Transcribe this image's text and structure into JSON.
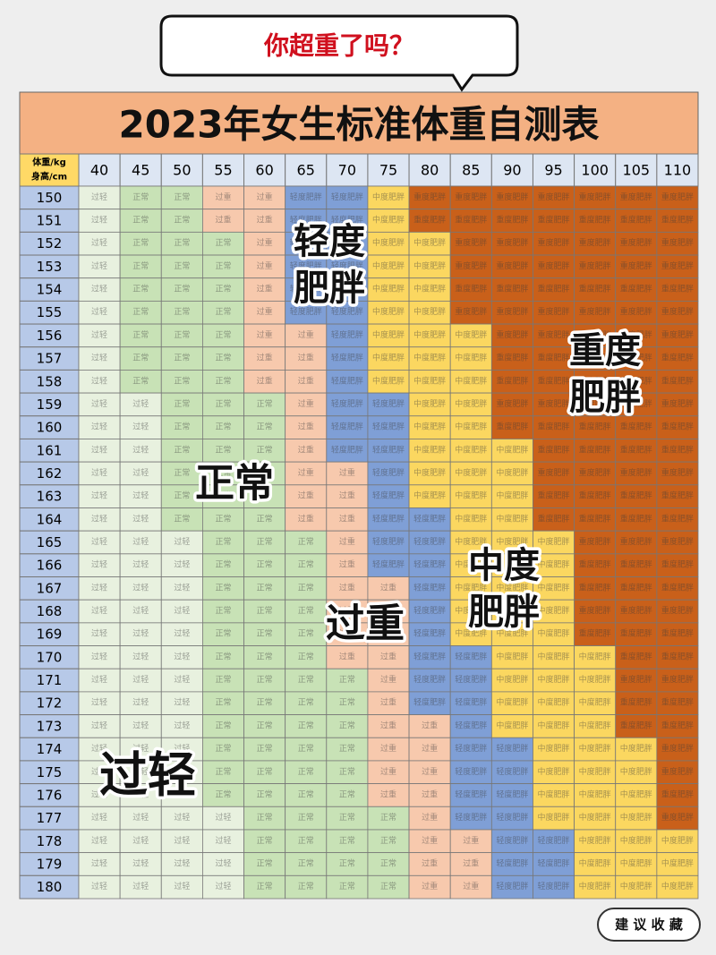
{
  "bubble": "你超重了吗？",
  "title": "2023年女生标准体重自测表",
  "levels": [
    {
      "label": "过轻",
      "color": "#e8f1df"
    },
    {
      "label": "正常",
      "color": "#c8e2b6"
    },
    {
      "label": "过重",
      "color": "#f7c9ad"
    },
    {
      "label": "轻度肥胖",
      "color": "#7f9fd6"
    },
    {
      "label": "中度肥胖",
      "color": "#fbd760"
    },
    {
      "label": "重度肥胖",
      "color": "#c9601a"
    }
  ],
  "table": {
    "corner": [
      "体重/kg",
      "身高/cm"
    ],
    "weights": [
      40,
      45,
      50,
      55,
      60,
      65,
      70,
      75,
      80,
      85,
      90,
      95,
      100,
      105,
      110
    ],
    "rows": [
      {
        "height": 150,
        "cells": [
          "过轻",
          "正常",
          "正常",
          "过重",
          "过重",
          "轻度肥胖",
          "轻度肥胖",
          "中度肥胖",
          "重度肥胖",
          "重度肥胖",
          "重度肥胖",
          "重度肥胖",
          "重度肥胖",
          "重度肥胖",
          "重度肥胖"
        ]
      },
      {
        "height": 151,
        "cells": [
          "过轻",
          "正常",
          "正常",
          "过重",
          "过重",
          "轻度肥胖",
          "轻度肥胖",
          "中度肥胖",
          "重度肥胖",
          "重度肥胖",
          "重度肥胖",
          "重度肥胖",
          "重度肥胖",
          "重度肥胖",
          "重度肥胖"
        ]
      },
      {
        "height": 152,
        "cells": [
          "过轻",
          "正常",
          "正常",
          "正常",
          "过重",
          "轻度肥胖",
          "轻度肥胖",
          "中度肥胖",
          "中度肥胖",
          "重度肥胖",
          "重度肥胖",
          "重度肥胖",
          "重度肥胖",
          "重度肥胖",
          "重度肥胖"
        ]
      },
      {
        "height": 153,
        "cells": [
          "过轻",
          "正常",
          "正常",
          "正常",
          "过重",
          "轻度肥胖",
          "轻度肥胖",
          "中度肥胖",
          "中度肥胖",
          "重度肥胖",
          "重度肥胖",
          "重度肥胖",
          "重度肥胖",
          "重度肥胖",
          "重度肥胖"
        ]
      },
      {
        "height": 154,
        "cells": [
          "过轻",
          "正常",
          "正常",
          "正常",
          "过重",
          "轻度肥胖",
          "轻度肥胖",
          "中度肥胖",
          "中度肥胖",
          "重度肥胖",
          "重度肥胖",
          "重度肥胖",
          "重度肥胖",
          "重度肥胖",
          "重度肥胖"
        ]
      },
      {
        "height": 155,
        "cells": [
          "过轻",
          "正常",
          "正常",
          "正常",
          "过重",
          "轻度肥胖",
          "轻度肥胖",
          "中度肥胖",
          "中度肥胖",
          "重度肥胖",
          "重度肥胖",
          "重度肥胖",
          "重度肥胖",
          "重度肥胖",
          "重度肥胖"
        ]
      },
      {
        "height": 156,
        "cells": [
          "过轻",
          "正常",
          "正常",
          "正常",
          "过重",
          "过重",
          "轻度肥胖",
          "中度肥胖",
          "中度肥胖",
          "中度肥胖",
          "重度肥胖",
          "重度肥胖",
          "重度肥胖",
          "重度肥胖",
          "重度肥胖"
        ]
      },
      {
        "height": 157,
        "cells": [
          "过轻",
          "正常",
          "正常",
          "正常",
          "过重",
          "过重",
          "轻度肥胖",
          "中度肥胖",
          "中度肥胖",
          "中度肥胖",
          "重度肥胖",
          "重度肥胖",
          "重度肥胖",
          "重度肥胖",
          "重度肥胖"
        ]
      },
      {
        "height": 158,
        "cells": [
          "过轻",
          "正常",
          "正常",
          "正常",
          "过重",
          "过重",
          "轻度肥胖",
          "中度肥胖",
          "中度肥胖",
          "中度肥胖",
          "重度肥胖",
          "重度肥胖",
          "重度肥胖",
          "重度肥胖",
          "重度肥胖"
        ]
      },
      {
        "height": 159,
        "cells": [
          "过轻",
          "过轻",
          "正常",
          "正常",
          "正常",
          "过重",
          "轻度肥胖",
          "轻度肥胖",
          "中度肥胖",
          "中度肥胖",
          "重度肥胖",
          "重度肥胖",
          "重度肥胖",
          "重度肥胖",
          "重度肥胖"
        ]
      },
      {
        "height": 160,
        "cells": [
          "过轻",
          "过轻",
          "正常",
          "正常",
          "正常",
          "过重",
          "轻度肥胖",
          "轻度肥胖",
          "中度肥胖",
          "中度肥胖",
          "重度肥胖",
          "重度肥胖",
          "重度肥胖",
          "重度肥胖",
          "重度肥胖"
        ]
      },
      {
        "height": 161,
        "cells": [
          "过轻",
          "过轻",
          "正常",
          "正常",
          "正常",
          "过重",
          "轻度肥胖",
          "轻度肥胖",
          "中度肥胖",
          "中度肥胖",
          "中度肥胖",
          "重度肥胖",
          "重度肥胖",
          "重度肥胖",
          "重度肥胖"
        ]
      },
      {
        "height": 162,
        "cells": [
          "过轻",
          "过轻",
          "正常",
          "正常",
          "正常",
          "过重",
          "过重",
          "轻度肥胖",
          "中度肥胖",
          "中度肥胖",
          "中度肥胖",
          "重度肥胖",
          "重度肥胖",
          "重度肥胖",
          "重度肥胖"
        ]
      },
      {
        "height": 163,
        "cells": [
          "过轻",
          "过轻",
          "正常",
          "正常",
          "正常",
          "过重",
          "过重",
          "轻度肥胖",
          "中度肥胖",
          "中度肥胖",
          "中度肥胖",
          "重度肥胖",
          "重度肥胖",
          "重度肥胖",
          "重度肥胖"
        ]
      },
      {
        "height": 164,
        "cells": [
          "过轻",
          "过轻",
          "正常",
          "正常",
          "正常",
          "过重",
          "过重",
          "轻度肥胖",
          "轻度肥胖",
          "中度肥胖",
          "中度肥胖",
          "重度肥胖",
          "重度肥胖",
          "重度肥胖",
          "重度肥胖"
        ]
      },
      {
        "height": 165,
        "cells": [
          "过轻",
          "过轻",
          "过轻",
          "正常",
          "正常",
          "正常",
          "过重",
          "轻度肥胖",
          "轻度肥胖",
          "中度肥胖",
          "中度肥胖",
          "中度肥胖",
          "重度肥胖",
          "重度肥胖",
          "重度肥胖"
        ]
      },
      {
        "height": 166,
        "cells": [
          "过轻",
          "过轻",
          "过轻",
          "正常",
          "正常",
          "正常",
          "过重",
          "轻度肥胖",
          "轻度肥胖",
          "中度肥胖",
          "中度肥胖",
          "中度肥胖",
          "重度肥胖",
          "重度肥胖",
          "重度肥胖"
        ]
      },
      {
        "height": 167,
        "cells": [
          "过轻",
          "过轻",
          "过轻",
          "正常",
          "正常",
          "正常",
          "过重",
          "过重",
          "轻度肥胖",
          "中度肥胖",
          "中度肥胖",
          "中度肥胖",
          "重度肥胖",
          "重度肥胖",
          "重度肥胖"
        ]
      },
      {
        "height": 168,
        "cells": [
          "过轻",
          "过轻",
          "过轻",
          "正常",
          "正常",
          "正常",
          "过重",
          "过重",
          "轻度肥胖",
          "中度肥胖",
          "中度肥胖",
          "中度肥胖",
          "重度肥胖",
          "重度肥胖",
          "重度肥胖"
        ]
      },
      {
        "height": 169,
        "cells": [
          "过轻",
          "过轻",
          "过轻",
          "正常",
          "正常",
          "正常",
          "过重",
          "过重",
          "轻度肥胖",
          "中度肥胖",
          "中度肥胖",
          "中度肥胖",
          "重度肥胖",
          "重度肥胖",
          "重度肥胖"
        ]
      },
      {
        "height": 170,
        "cells": [
          "过轻",
          "过轻",
          "过轻",
          "正常",
          "正常",
          "正常",
          "过重",
          "过重",
          "轻度肥胖",
          "轻度肥胖",
          "中度肥胖",
          "中度肥胖",
          "中度肥胖",
          "重度肥胖",
          "重度肥胖"
        ]
      },
      {
        "height": 171,
        "cells": [
          "过轻",
          "过轻",
          "过轻",
          "正常",
          "正常",
          "正常",
          "正常",
          "过重",
          "轻度肥胖",
          "轻度肥胖",
          "中度肥胖",
          "中度肥胖",
          "中度肥胖",
          "重度肥胖",
          "重度肥胖"
        ]
      },
      {
        "height": 172,
        "cells": [
          "过轻",
          "过轻",
          "过轻",
          "正常",
          "正常",
          "正常",
          "正常",
          "过重",
          "轻度肥胖",
          "轻度肥胖",
          "中度肥胖",
          "中度肥胖",
          "中度肥胖",
          "重度肥胖",
          "重度肥胖"
        ]
      },
      {
        "height": 173,
        "cells": [
          "过轻",
          "过轻",
          "过轻",
          "正常",
          "正常",
          "正常",
          "正常",
          "过重",
          "过重",
          "轻度肥胖",
          "中度肥胖",
          "中度肥胖",
          "中度肥胖",
          "重度肥胖",
          "重度肥胖"
        ]
      },
      {
        "height": 174,
        "cells": [
          "过轻",
          "过轻",
          "过轻",
          "正常",
          "正常",
          "正常",
          "正常",
          "过重",
          "过重",
          "轻度肥胖",
          "轻度肥胖",
          "中度肥胖",
          "中度肥胖",
          "中度肥胖",
          "重度肥胖"
        ]
      },
      {
        "height": 175,
        "cells": [
          "过轻",
          "过轻",
          "过轻",
          "正常",
          "正常",
          "正常",
          "正常",
          "过重",
          "过重",
          "轻度肥胖",
          "轻度肥胖",
          "中度肥胖",
          "中度肥胖",
          "中度肥胖",
          "重度肥胖"
        ]
      },
      {
        "height": 176,
        "cells": [
          "过轻",
          "过轻",
          "过轻",
          "正常",
          "正常",
          "正常",
          "正常",
          "过重",
          "过重",
          "轻度肥胖",
          "轻度肥胖",
          "中度肥胖",
          "中度肥胖",
          "中度肥胖",
          "重度肥胖"
        ]
      },
      {
        "height": 177,
        "cells": [
          "过轻",
          "过轻",
          "过轻",
          "过轻",
          "正常",
          "正常",
          "正常",
          "正常",
          "过重",
          "轻度肥胖",
          "轻度肥胖",
          "中度肥胖",
          "中度肥胖",
          "中度肥胖",
          "重度肥胖"
        ]
      },
      {
        "height": 178,
        "cells": [
          "过轻",
          "过轻",
          "过轻",
          "过轻",
          "正常",
          "正常",
          "正常",
          "正常",
          "过重",
          "过重",
          "轻度肥胖",
          "轻度肥胖",
          "中度肥胖",
          "中度肥胖",
          "中度肥胖"
        ]
      },
      {
        "height": 179,
        "cells": [
          "过轻",
          "过轻",
          "过轻",
          "过轻",
          "正常",
          "正常",
          "正常",
          "正常",
          "过重",
          "过重",
          "轻度肥胖",
          "轻度肥胖",
          "中度肥胖",
          "中度肥胖",
          "中度肥胖"
        ]
      },
      {
        "height": 180,
        "cells": [
          "过轻",
          "过轻",
          "过轻",
          "过轻",
          "正常",
          "正常",
          "正常",
          "正常",
          "过重",
          "过重",
          "轻度肥胖",
          "轻度肥胖",
          "中度肥胖",
          "中度肥胖",
          "中度肥胖"
        ]
      }
    ]
  },
  "overlay_labels": [
    [
      "轻度",
      "肥胖"
    ],
    [
      "重度",
      "肥胖"
    ],
    [
      "正常"
    ],
    [
      "中度",
      "肥胖"
    ],
    [
      "过重"
    ],
    [
      "过轻"
    ]
  ],
  "footer": "建 议 收 藏"
}
